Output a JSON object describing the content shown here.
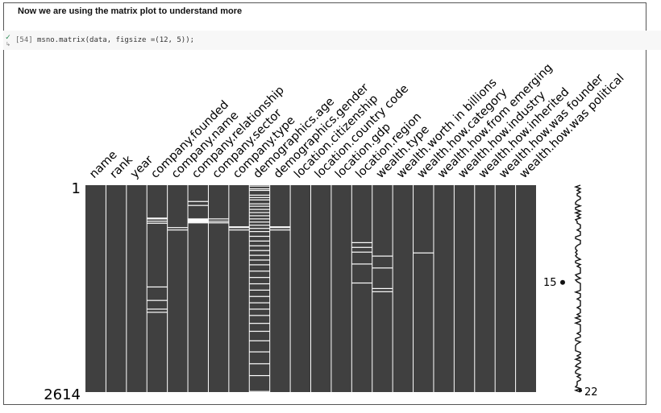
{
  "notebook": {
    "heading": "Now we are using the matrix plot to understand more",
    "exec_count": "[54]",
    "code": "msno.matrix(data, figsize =(12, 5));",
    "run_status_icon": "check-icon"
  },
  "chart_data": {
    "type": "heatmap",
    "title": "",
    "columns": [
      "name",
      "rank",
      "year",
      "company.founded",
      "company.name",
      "company.relationship",
      "company.sector",
      "company.type",
      "demographics.age",
      "demographics.gender",
      "location.citizenship",
      "location.country code",
      "location.gdp",
      "location.region",
      "wealth.type",
      "wealth.worth in billions",
      "wealth.how.category",
      "wealth.how.from emerging",
      "wealth.how.industry",
      "wealth.how.inherited",
      "wealth.how.was founder",
      "wealth.how.was political"
    ],
    "row_first_label": "1",
    "row_last_label": "2614",
    "row_count": 2614,
    "sparkline_labels": [
      "15",
      "22"
    ],
    "sparkline_min": 15,
    "sparkline_max": 22,
    "missing_rows": {
      "company.founded": [
        410,
        420,
        450,
        475,
        1280,
        1450,
        1560,
        1600
      ],
      "company.name": [
        530,
        560
      ],
      "company.relationship": [
        200,
        250,
        420,
        430,
        440,
        450,
        460,
        470
      ],
      "company.sector": [
        420,
        450,
        470
      ],
      "company.type": [
        520,
        530,
        560
      ],
      "demographics.age": [
        5,
        40,
        60,
        120,
        150,
        180,
        230,
        260,
        300,
        340,
        380,
        420,
        460,
        500,
        540,
        580,
        640,
        700,
        760,
        820,
        880,
        940,
        1000,
        1080,
        1160,
        1240,
        1320,
        1400,
        1480,
        1560,
        1640,
        1740,
        1840,
        1960,
        2100,
        2250,
        2400,
        2600
      ],
      "demographics.gender": [
        520,
        530,
        560
      ],
      "location.region": [
        720,
        780,
        840,
        990,
        1230
      ],
      "wealth.type": [
        890,
        1040,
        1300,
        1340
      ],
      "wealth.how.category": [
        850
      ]
    },
    "grid": false
  }
}
